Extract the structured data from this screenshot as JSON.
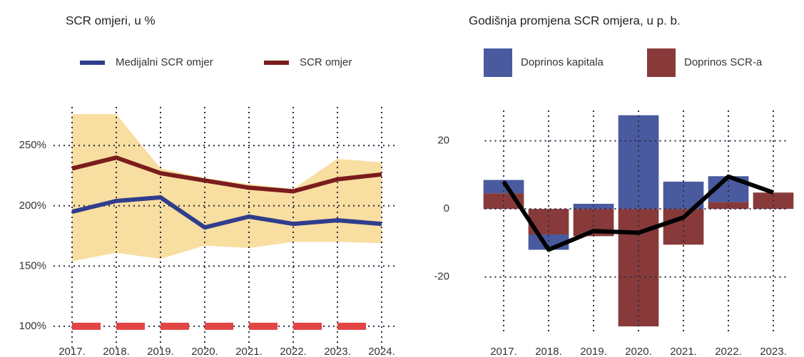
{
  "chart_data": [
    {
      "type": "line",
      "title": "SCR omjeri, u %",
      "categories": [
        "2017.",
        "2018.",
        "2019.",
        "2020.",
        "2021.",
        "2022.",
        "2023.",
        "2024."
      ],
      "series": [
        {
          "name": "Medijalni SCR omjer",
          "color": "#2f3d8c",
          "values": [
            195,
            204,
            207,
            182,
            191,
            185,
            188,
            185
          ]
        },
        {
          "name": "SCR omjer",
          "color": "#7a1c1c",
          "values": [
            231,
            240,
            227,
            221,
            215,
            212,
            222,
            226
          ]
        }
      ],
      "band": {
        "color": "#f8dea0",
        "upper": [
          276,
          276,
          231,
          223,
          218,
          214,
          239,
          236
        ],
        "lower": [
          154,
          161,
          156,
          167,
          165,
          170,
          170,
          169
        ]
      },
      "hline": {
        "value": 100,
        "color": "#e34444"
      },
      "ylim": [
        81,
        288
      ],
      "yticks": [
        {
          "value": 100,
          "label": "100%"
        },
        {
          "value": 150,
          "label": "150%"
        },
        {
          "value": 200,
          "label": "200%"
        },
        {
          "value": 250,
          "label": "250%"
        }
      ],
      "grid": true
    },
    {
      "type": "bar",
      "title": "Godišnja promjena SCR omjera, u p. b.",
      "categories": [
        "2017.",
        "2018.",
        "2019.",
        "2020.",
        "2021.",
        "2022.",
        "2023."
      ],
      "series": [
        {
          "name": "Doprinos kapitala",
          "color": "#4a5a9e",
          "values": [
            3.9,
            -4.5,
            1.5,
            27.5,
            8,
            7.6,
            0
          ]
        },
        {
          "name": "Doprinos SCR-a",
          "color": "#883a3a",
          "values": [
            4.6,
            -7.5,
            -8,
            -34.5,
            -10.5,
            2,
            4.8
          ]
        }
      ],
      "line": {
        "color": "#000000",
        "values": [
          8,
          -12,
          -6.5,
          -7,
          -2.5,
          9.5,
          4.8
        ]
      },
      "ylim": [
        -37,
        31
      ],
      "yticks": [
        -20,
        0,
        20
      ],
      "grid": true
    }
  ]
}
